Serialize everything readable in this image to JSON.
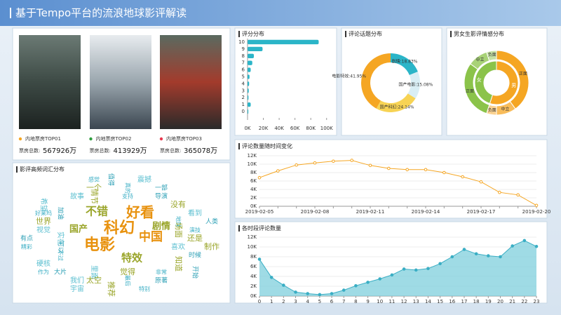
{
  "header": {
    "title": "基于Tempo平台的流浪地球影评解读"
  },
  "posters": {
    "items": [
      {
        "rank_label": "内地票房TOP01",
        "box_office_label": "票房总数:",
        "box_office": "567926万",
        "color": "#f5a623"
      },
      {
        "rank_label": "内地票房TOP02",
        "box_office_label": "票房总数:",
        "box_office": "413929万",
        "color": "#2e9e3e"
      },
      {
        "rank_label": "内地票房TOP03",
        "box_office_label": "票房总数:",
        "box_office": "365078万",
        "color": "#e8384f"
      }
    ]
  },
  "word_cloud": {
    "title": "影评高频词汇分布",
    "major_words": [
      "科幻",
      "好看",
      "电影",
      "中国",
      "不错",
      "国产",
      "特效",
      "剧情"
    ],
    "words": [
      "感觉",
      "值得",
      "震撼",
      "一个",
      "真的",
      "一部",
      "故事",
      "情节",
      "支持",
      "导演",
      "希望",
      "没有",
      "好莱坞",
      "加油",
      "看到",
      "世界",
      "地球",
      "人类",
      "视觉",
      "场面",
      "演技",
      "有点",
      "实在",
      "还是",
      "精彩",
      "可以",
      "喜欢",
      "制作",
      "不过",
      "时候",
      "硬核",
      "知道",
      "作为",
      "大片",
      "里面",
      "觉得",
      "非常",
      "开始",
      "我们",
      "太空",
      "最后",
      "原著",
      "宇宙",
      "推荐",
      "特别"
    ]
  },
  "chart_data": [
    {
      "type": "bar",
      "title": "评分分布",
      "categories": [
        "10",
        "9",
        "8",
        "7",
        "6",
        "5",
        "4",
        "3",
        "2",
        "1",
        "0"
      ],
      "values": [
        90000,
        19000,
        8000,
        6000,
        4000,
        2500,
        2000,
        1500,
        1200,
        4000,
        1000
      ],
      "color": "#2bb5c8",
      "xlim": [
        0,
        110000
      ],
      "xticks": [
        {
          "value": 0,
          "label": "0K"
        },
        {
          "value": 20000,
          "label": "20K"
        },
        {
          "value": 40000,
          "label": "40K"
        },
        {
          "value": 60000,
          "label": "60K"
        },
        {
          "value": 80000,
          "label": "80K"
        },
        {
          "value": 100000,
          "label": "100K"
        }
      ]
    },
    {
      "type": "pie",
      "title": "评论话题分布",
      "categories": [
        "剧情",
        "国产电影",
        "国产科幻",
        "电影特效"
      ],
      "values": [
        18.83,
        15.08,
        24.14,
        41.95
      ],
      "value_labels": [
        "剧情:18.83%",
        "国产电影:15.08%",
        "国产科幻:24.14%",
        "电影特效:41.95%"
      ],
      "colors": [
        "#2bb5c8",
        "#d9eef5",
        "#f7d354",
        "#f5a623"
      ]
    },
    {
      "type": "sunburst",
      "title": "男女生影评情感分布",
      "categories": [
        "正面",
        "中立",
        "负面"
      ],
      "series": [
        {
          "name": "男",
          "color": "#f5a623",
          "values": [
            40,
            10,
            5
          ]
        },
        {
          "name": "女",
          "color": "#8bc34a",
          "values": [
            30,
            10,
            5
          ]
        }
      ]
    },
    {
      "type": "line",
      "title": "评论数量随时间变化",
      "categories": [
        "2019-02-05",
        null,
        null,
        "2019-02-08",
        null,
        null,
        "2019-02-11",
        null,
        null,
        "2019-02-14",
        null,
        null,
        "2019-02-17",
        null,
        null,
        "2019-02-20"
      ],
      "values": [
        6800,
        8400,
        9800,
        10300,
        10700,
        10900,
        9700,
        9000,
        8700,
        8700,
        8000,
        7000,
        5800,
        3300,
        2700,
        200
      ],
      "color": "#f5a623",
      "ylim": [
        0,
        12000
      ],
      "yticks": [
        {
          "value": 0,
          "label": "0K"
        },
        {
          "value": 2000,
          "label": "2K"
        },
        {
          "value": 4000,
          "label": "4K"
        },
        {
          "value": 6000,
          "label": "6K"
        },
        {
          "value": 8000,
          "label": "8K"
        },
        {
          "value": 10000,
          "label": "10K"
        },
        {
          "value": 12000,
          "label": "12K"
        }
      ],
      "grid": true
    },
    {
      "type": "area",
      "title": "各时段评论数量",
      "x": [
        0,
        1,
        2,
        3,
        4,
        5,
        6,
        7,
        8,
        9,
        10,
        11,
        12,
        13,
        14,
        15,
        16,
        17,
        18,
        19,
        20,
        21,
        22,
        23
      ],
      "values": [
        7500,
        3800,
        2200,
        800,
        500,
        300,
        500,
        1200,
        2100,
        2800,
        3500,
        4300,
        5500,
        5300,
        5600,
        6600,
        8000,
        9500,
        8600,
        8200,
        8000,
        10200,
        11300,
        10100
      ],
      "color": "#3aaec4",
      "xlim": [
        0,
        23
      ],
      "xticks": [
        0,
        1,
        2,
        3,
        4,
        5,
        6,
        7,
        8,
        9,
        10,
        11,
        12,
        13,
        14,
        15,
        16,
        17,
        18,
        19,
        20,
        21,
        22,
        23
      ],
      "ylim": [
        0,
        12000
      ],
      "yticks": [
        {
          "value": 0,
          "label": "0K"
        },
        {
          "value": 2000,
          "label": "2K"
        },
        {
          "value": 4000,
          "label": "4K"
        },
        {
          "value": 6000,
          "label": "6K"
        },
        {
          "value": 8000,
          "label": "8K"
        },
        {
          "value": 10000,
          "label": "10K"
        },
        {
          "value": 12000,
          "label": "12K"
        }
      ],
      "grid": true
    }
  ]
}
